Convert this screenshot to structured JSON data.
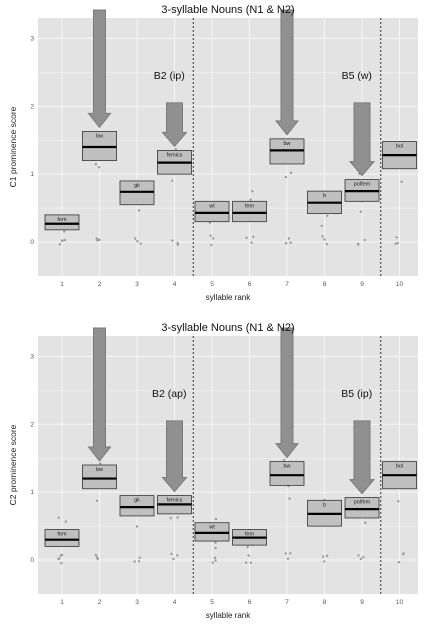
{
  "chart_data": [
    {
      "type": "box",
      "title": "3-syllable Nouns (N1 & N2)",
      "xlabel": "syllable rank",
      "ylabel": "C1 prominence score",
      "x_ticks": [
        "1",
        "2",
        "3",
        "4",
        "5",
        "6",
        "7",
        "8",
        "9",
        "10"
      ],
      "y_ticks": [
        "0",
        "1",
        "2",
        "3"
      ],
      "ylim": [
        -0.5,
        3.3
      ],
      "grid": true,
      "boundaries": [
        {
          "after_rank": 4,
          "label": "B2 (ip)"
        },
        {
          "after_rank": 9,
          "label": "B5 (w)"
        }
      ],
      "arrows": [
        {
          "rank": 2,
          "size": "large"
        },
        {
          "rank": 4,
          "size": "small"
        },
        {
          "rank": 7,
          "size": "large"
        },
        {
          "rank": 9,
          "size": "small"
        }
      ],
      "boxes": [
        {
          "rank": 1,
          "label": "fem",
          "q1": 0.18,
          "median": 0.27,
          "q3": 0.4
        },
        {
          "rank": 2,
          "label": "bw",
          "q1": 1.2,
          "median": 1.4,
          "q3": 1.63
        },
        {
          "rank": 3,
          "label": "gk",
          "q1": 0.55,
          "median": 0.74,
          "q3": 0.9
        },
        {
          "rank": 4,
          "label": "femics",
          "q1": 1.0,
          "median": 1.17,
          "q3": 1.35
        },
        {
          "rank": 5,
          "label": "wt",
          "q1": 0.3,
          "median": 0.43,
          "q3": 0.6
        },
        {
          "rank": 6,
          "label": "fem",
          "q1": 0.3,
          "median": 0.43,
          "q3": 0.6
        },
        {
          "rank": 7,
          "label": "bw",
          "q1": 1.15,
          "median": 1.35,
          "q3": 1.52
        },
        {
          "rank": 8,
          "label": "b",
          "q1": 0.42,
          "median": 0.58,
          "q3": 0.75
        },
        {
          "rank": 9,
          "label": "polfem",
          "q1": 0.6,
          "median": 0.75,
          "q3": 0.92
        },
        {
          "rank": 10,
          "label": "bol",
          "q1": 1.08,
          "median": 1.28,
          "q3": 1.48
        }
      ]
    },
    {
      "type": "box",
      "title": "3-syllable Nouns (N1 & N2)",
      "xlabel": "syllable rank",
      "ylabel": "C2 prominence score",
      "x_ticks": [
        "1",
        "2",
        "3",
        "4",
        "5",
        "6",
        "7",
        "8",
        "9",
        "10"
      ],
      "y_ticks": [
        "0",
        "1",
        "2",
        "3"
      ],
      "ylim": [
        -0.5,
        3.3
      ],
      "grid": true,
      "boundaries": [
        {
          "after_rank": 4,
          "label": "B2 (ap)"
        },
        {
          "after_rank": 9,
          "label": "B5 (ip)"
        }
      ],
      "arrows": [
        {
          "rank": 2,
          "size": "large"
        },
        {
          "rank": 4,
          "size": "small"
        },
        {
          "rank": 7,
          "size": "large"
        },
        {
          "rank": 9,
          "size": "small"
        }
      ],
      "boxes": [
        {
          "rank": 1,
          "label": "fem",
          "q1": 0.2,
          "median": 0.3,
          "q3": 0.45
        },
        {
          "rank": 2,
          "label": "bw",
          "q1": 1.05,
          "median": 1.2,
          "q3": 1.4
        },
        {
          "rank": 3,
          "label": "gk",
          "q1": 0.65,
          "median": 0.78,
          "q3": 0.95
        },
        {
          "rank": 4,
          "label": "femics",
          "q1": 0.68,
          "median": 0.82,
          "q3": 0.95
        },
        {
          "rank": 5,
          "label": "wt",
          "q1": 0.28,
          "median": 0.4,
          "q3": 0.55
        },
        {
          "rank": 6,
          "label": "fem",
          "q1": 0.22,
          "median": 0.33,
          "q3": 0.45
        },
        {
          "rank": 7,
          "label": "bw",
          "q1": 1.1,
          "median": 1.25,
          "q3": 1.45
        },
        {
          "rank": 8,
          "label": "b",
          "q1": 0.5,
          "median": 0.68,
          "q3": 0.88
        },
        {
          "rank": 9,
          "label": "polfem",
          "q1": 0.62,
          "median": 0.75,
          "q3": 0.92
        },
        {
          "rank": 10,
          "label": "bol",
          "q1": 1.05,
          "median": 1.25,
          "q3": 1.45
        }
      ]
    }
  ]
}
